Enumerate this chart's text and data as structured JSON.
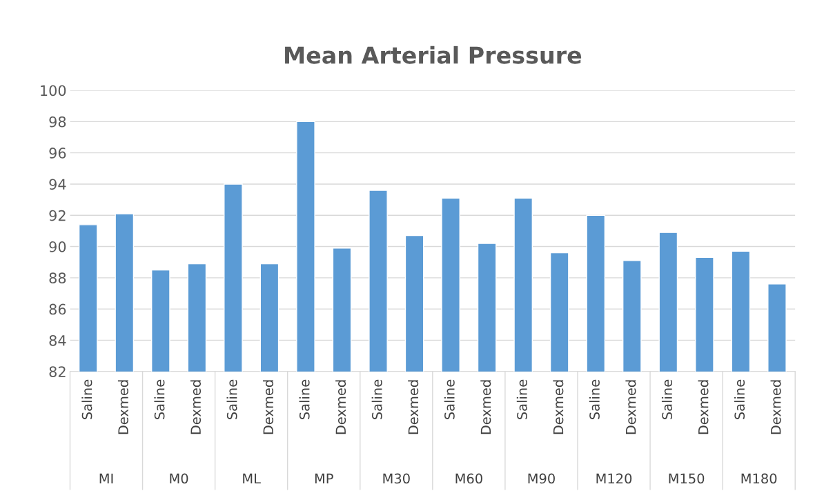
{
  "chart_data": {
    "type": "bar",
    "title": "Mean Arterial Pressure",
    "categories": [
      "Saline",
      "Dexmed",
      "Saline",
      "Dexmed",
      "Saline",
      "Dexmed",
      "Saline",
      "Dexmed",
      "Saline",
      "Dexmed",
      "Saline",
      "Dexmed",
      "Saline",
      "Dexmed",
      "Saline",
      "Dexmed",
      "Saline",
      "Dexmed",
      "Saline",
      "Dexmed"
    ],
    "values": [
      91.4,
      92.1,
      88.5,
      88.9,
      94.0,
      88.9,
      98.0,
      89.9,
      93.6,
      90.7,
      93.1,
      90.2,
      93.1,
      89.6,
      92.0,
      89.1,
      90.9,
      89.3,
      89.7,
      87.6
    ],
    "color": "#5b9bd5",
    "annotations": [
      "MI",
      "M0",
      "ML",
      "MP",
      "M30",
      "M60",
      "M90",
      "M120",
      "M150",
      "M180"
    ],
    "ylim": [
      82,
      100
    ],
    "yticks": [
      82,
      84,
      86,
      88,
      90,
      92,
      94,
      96,
      98,
      100
    ],
    "grid": "y"
  }
}
